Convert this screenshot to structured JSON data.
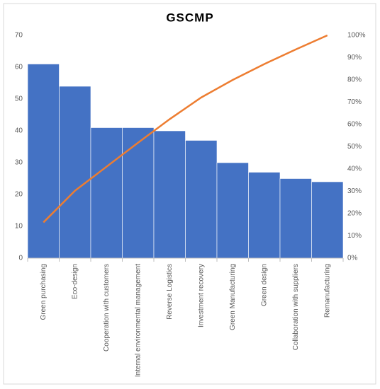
{
  "chart_data": {
    "type": "bar",
    "title": "GSCMP",
    "categories": [
      "Green purchasing",
      "Eco-design",
      "Cooperation with customers",
      "Internal environmental management",
      "Reverse Logistics",
      "Investment recovery",
      "Green Manufacturing",
      "Green design",
      "Collaboration with suppliers",
      "Remanufacturing"
    ],
    "series": [
      {
        "color": "#4472c4",
        "values": [
          61,
          54,
          41,
          41,
          40,
          37,
          30,
          27,
          25,
          24
        ]
      },
      {
        "color": "#ed7d31",
        "axis": "y2",
        "values": [
          16.05,
          30.26,
          41.05,
          51.84,
          62.37,
          72.11,
          80,
          87.11,
          93.68,
          100
        ]
      }
    ],
    "ylim": [
      0,
      70
    ],
    "yticks": [
      0,
      10,
      20,
      30,
      40,
      50,
      60,
      70
    ],
    "y2lim": [
      0,
      100
    ],
    "y2ticks": [
      {
        "value": 0,
        "label": "0%"
      },
      {
        "value": 10,
        "label": "10%"
      },
      {
        "value": 20,
        "label": "20%"
      },
      {
        "value": 30,
        "label": "30%"
      },
      {
        "value": 40,
        "label": "40%"
      },
      {
        "value": 50,
        "label": "50%"
      },
      {
        "value": 60,
        "label": "60%"
      },
      {
        "value": 70,
        "label": "70%"
      },
      {
        "value": 80,
        "label": "80%"
      },
      {
        "value": 90,
        "label": "90%"
      },
      {
        "value": 100,
        "label": "100%"
      }
    ]
  }
}
